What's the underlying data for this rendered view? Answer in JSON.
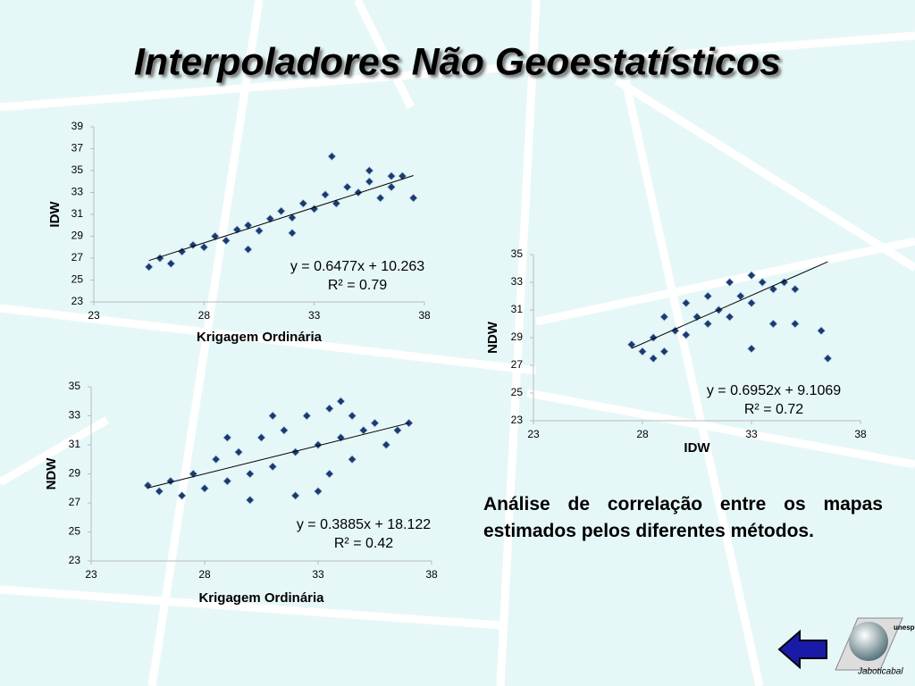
{
  "title": "Interpoladores Não Geoestatísticos",
  "description": "Análise de correlação entre os mapas estimados pelos diferentes métodos.",
  "logo": {
    "top": "unesp",
    "bottom": "Jaboticabal"
  },
  "chart_data": [
    {
      "type": "scatter",
      "xlabel": "Krigagem Ordinária",
      "ylabel": "IDW",
      "color": "#1c3a6e",
      "xlim": [
        23,
        38
      ],
      "ylim": [
        23,
        39
      ],
      "xticks": [
        23,
        28,
        33,
        38
      ],
      "yticks": [
        23,
        25,
        27,
        29,
        31,
        33,
        35,
        37,
        39
      ],
      "x": [
        25.5,
        26,
        26.5,
        27,
        27.5,
        28,
        28.5,
        29,
        29.5,
        30,
        30.5,
        31,
        31.5,
        32,
        32.5,
        33,
        33.5,
        34,
        34.5,
        35,
        35.5,
        36,
        36.5,
        37,
        37.5,
        33.8,
        35.5,
        36.5,
        30,
        32
      ],
      "y": [
        26.2,
        27,
        26.5,
        27.6,
        28.2,
        28,
        29,
        28.6,
        29.6,
        30,
        29.5,
        30.6,
        31.3,
        30.7,
        32,
        31.5,
        32.8,
        32,
        33.5,
        33,
        34,
        32.5,
        33.5,
        34.5,
        32.5,
        36.3,
        35,
        34.5,
        27.8,
        29.3
      ],
      "trendline": {
        "slope": 0.6477,
        "intercept": 10.263
      },
      "annotations": [
        "y = 0.6477x + 10.263",
        "R² = 0.79"
      ]
    },
    {
      "type": "scatter",
      "xlabel": "IDW",
      "ylabel": "NDW",
      "color": "#1c3a6e",
      "xlim": [
        23,
        38
      ],
      "ylim": [
        23,
        35
      ],
      "xticks": [
        23,
        28,
        33,
        38
      ],
      "yticks": [
        23,
        25,
        27,
        29,
        31,
        33,
        35
      ],
      "x": [
        27.5,
        28,
        28.5,
        29,
        29.5,
        30,
        30.5,
        31,
        31.5,
        32,
        32.5,
        33,
        33.5,
        34,
        34.5,
        35,
        29,
        30,
        31,
        32,
        33,
        34,
        28.5,
        35,
        36.5,
        36.2,
        33
      ],
      "y": [
        28.5,
        28,
        29,
        28,
        29.5,
        29.2,
        30.5,
        30,
        31,
        30.5,
        32,
        31.5,
        33,
        32.5,
        33,
        32.5,
        30.5,
        31.5,
        32,
        33,
        33.5,
        30,
        27.5,
        30,
        27.5,
        29.5,
        28.2
      ],
      "trendline": {
        "slope": 0.6952,
        "intercept": 9.1069
      },
      "annotations": [
        "y = 0.6952x + 9.1069",
        "R² = 0.72"
      ]
    },
    {
      "type": "scatter",
      "xlabel": "Krigagem Ordinária",
      "ylabel": "NDW",
      "color": "#1c3a6e",
      "xlim": [
        23,
        38
      ],
      "ylim": [
        23,
        35
      ],
      "xticks": [
        23,
        28,
        33,
        38
      ],
      "yticks": [
        23,
        25,
        27,
        29,
        31,
        33,
        35
      ],
      "x": [
        25.5,
        26,
        26.5,
        27,
        27.5,
        28,
        28.5,
        29,
        29.5,
        30,
        30.5,
        31,
        31.5,
        32,
        32.5,
        33,
        33.5,
        34,
        34.5,
        35,
        35.5,
        36,
        36.5,
        37,
        32,
        33,
        30,
        34,
        29,
        31,
        33.5,
        34.5
      ],
      "y": [
        28.2,
        27.8,
        28.5,
        27.5,
        29,
        28,
        30,
        28.5,
        30.5,
        29,
        31.5,
        29.5,
        32,
        30.5,
        33,
        31,
        33.5,
        31.5,
        33,
        32,
        32.5,
        31,
        32,
        32.5,
        27.5,
        27.8,
        27.2,
        34,
        31.5,
        33,
        29,
        30
      ],
      "trendline": {
        "slope": 0.3885,
        "intercept": 18.122
      },
      "annotations": [
        "y = 0.3885x + 18.122",
        "R² = 0.42"
      ]
    }
  ]
}
